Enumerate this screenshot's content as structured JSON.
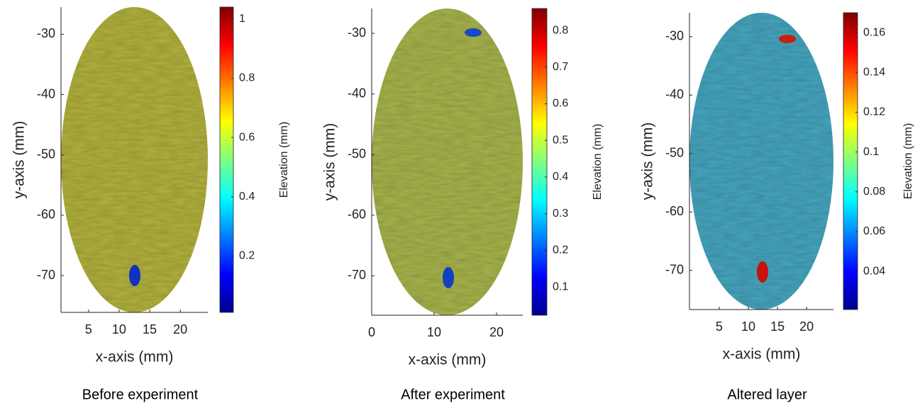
{
  "chart_data": [
    {
      "type": "heatmap",
      "caption": "Before experiment",
      "xlabel": "x-axis (mm)",
      "ylabel": "y-axis (mm)",
      "colorbar_label": "Elevation (mm)",
      "xlim": [
        0.5,
        24.5
      ],
      "xticks": [
        5,
        10,
        15,
        20
      ],
      "ylim": [
        -76.1,
        -25.5
      ],
      "yticks": [
        -30,
        -40,
        -50,
        -60,
        -70
      ],
      "clim": [
        0.01,
        1.04
      ],
      "cticks": [
        0.2,
        0.4,
        0.6,
        0.8,
        1
      ],
      "color": "#b3b23e"
    },
    {
      "type": "heatmap",
      "caption": "After experiment",
      "xlabel": "x-axis (mm)",
      "ylabel": "y-axis (mm)",
      "colorbar_label": "Elevation (mm)",
      "xlim": [
        0,
        24.2
      ],
      "xticks": [
        0,
        10,
        20
      ],
      "ylim": [
        -76.5,
        -25.9
      ],
      "yticks": [
        -30,
        -40,
        -50,
        -60,
        -70
      ],
      "clim": [
        0.023,
        0.86
      ],
      "cticks": [
        0.1,
        0.2,
        0.3,
        0.4,
        0.5,
        0.6,
        0.7,
        0.8
      ],
      "color": "#a8b44c"
    },
    {
      "type": "heatmap",
      "caption": "Altered layer",
      "xlabel": "x-axis (mm)",
      "ylabel": "y-axis (mm)",
      "colorbar_label": "Elevation (mm)",
      "xlim": [
        -0.1,
        24.6
      ],
      "xticks": [
        5,
        10,
        15,
        20
      ],
      "ylim": [
        -76.7,
        -25.9
      ],
      "yticks": [
        -30,
        -40,
        -50,
        -60,
        -70
      ],
      "clim": [
        0.0208,
        0.17
      ],
      "cticks": [
        0.04,
        0.06,
        0.08,
        0.1,
        0.12,
        0.14,
        0.16
      ],
      "color": "#46a6bf"
    }
  ]
}
